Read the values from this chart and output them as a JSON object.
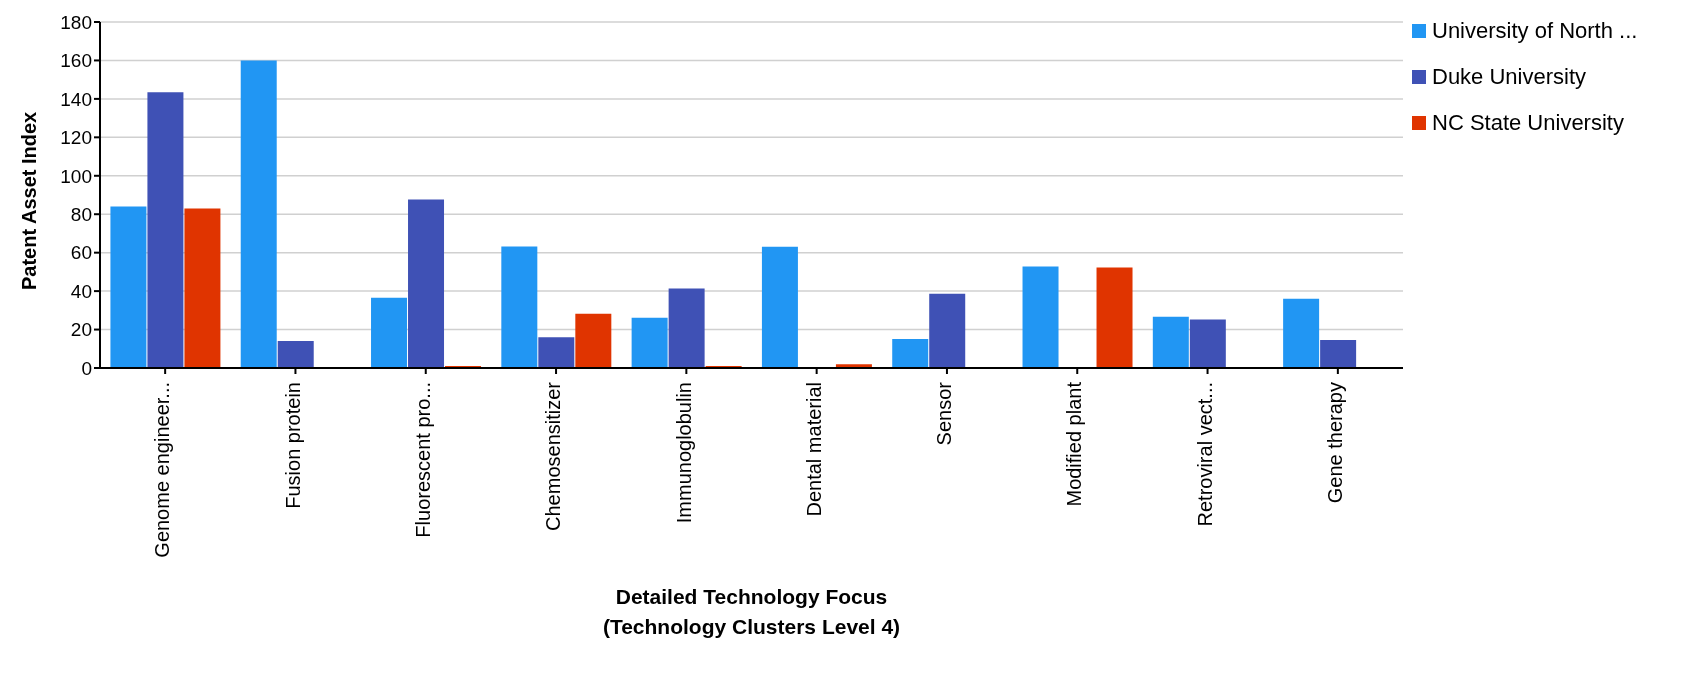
{
  "chart_data": {
    "type": "bar",
    "xlabel": "Detailed Technology Focus\n(Technology Clusters Level 4)",
    "ylabel": "Patent Asset Index",
    "categories": [
      "Genome engineer...",
      "Fusion protein",
      "Fluorescent pro...",
      "Chemosensitizer",
      "Immunoglobulin",
      "Dental material",
      "Sensor",
      "Modified plant",
      "Retroviral vect...",
      "Gene therapy"
    ],
    "series": [
      {
        "name": "University of North ...",
        "color": "#2196f3",
        "values": [
          84,
          160,
          36.6,
          63.2,
          26.1,
          63.1,
          15.1,
          52.8,
          26.6,
          36
        ]
      },
      {
        "name": "Duke University",
        "color": "#3f51b5",
        "values": [
          143.4,
          14,
          87.6,
          16,
          41.3,
          0,
          38.6,
          0,
          25.2,
          14.6
        ]
      },
      {
        "name": "NC State University",
        "color": "#e03400",
        "values": [
          83,
          null,
          1,
          28.2,
          1,
          2,
          0,
          52.3,
          0,
          null
        ]
      }
    ],
    "ylim": [
      0,
      180
    ],
    "yticks": [
      0,
      20,
      40,
      60,
      80,
      100,
      120,
      140,
      160,
      180
    ],
    "grid": "y",
    "legend": "top right"
  }
}
